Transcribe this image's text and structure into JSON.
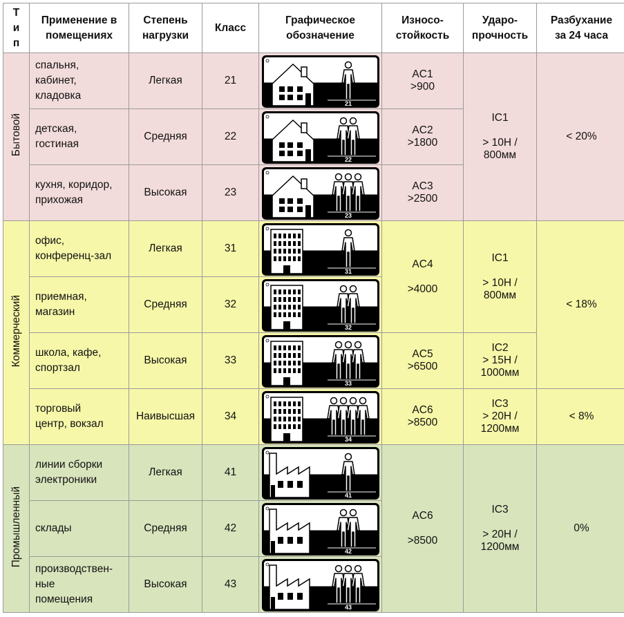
{
  "header": {
    "type": "Т\nи\nп",
    "application": "Применение в\nпомещениях",
    "load": "Степень\nнагрузки",
    "class": "Класс",
    "graphic": "Графическое\nобозначение",
    "abrasion": "Износо-\nстойкость",
    "impact": "Ударо-\nпрочность",
    "swelling": "Разбухание\nза 24 часа"
  },
  "groups": [
    {
      "type": "Бытовой",
      "color": "#f2dcdb",
      "icon": "house-icon",
      "rows": [
        {
          "application": "спальня,\nкабинет,\nкладовка",
          "load": "Легкая",
          "class": "21",
          "people": 1
        },
        {
          "application": "детская,\nгостиная",
          "load": "Средняя",
          "class": "22",
          "people": 2
        },
        {
          "application": "кухня, коридор,\nприхожая",
          "load": "Высокая",
          "class": "23",
          "people": 3
        }
      ],
      "abrasion": [
        "AC1\n>900",
        "AC2\n>1800",
        "AC3\n>2500"
      ],
      "impact": [
        "IC1\n\n> 10Н /\n800мм"
      ],
      "swelling": [
        "< 20%"
      ]
    },
    {
      "type": "Коммерческий",
      "color": "#f7f7a9",
      "icon": "office-building-icon",
      "rows": [
        {
          "application": "офис,\nконференц-зал",
          "load": "Легкая",
          "class": "31",
          "people": 1
        },
        {
          "application": "приемная,\nмагазин",
          "load": "Средняя",
          "class": "32",
          "people": 2
        },
        {
          "application": "школа, кафе,\nспортзал",
          "load": "Высокая",
          "class": "33",
          "people": 3
        },
        {
          "application": "торговый\nцентр, вокзал",
          "load": "Наивысшая",
          "class": "34",
          "people": 4
        }
      ],
      "abrasion": [
        "AC4\n\n>4000",
        "AC5\n>6500",
        "AC6\n>8500"
      ],
      "impact": [
        "IC1\n\n> 10Н /\n800мм",
        "IC2\n> 15Н /\n1000мм",
        "IC3\n> 20Н /\n1200мм"
      ],
      "swelling": [
        "< 18%",
        "< 8%"
      ]
    },
    {
      "type": "Промышленный",
      "color": "#d8e4bc",
      "icon": "factory-icon",
      "rows": [
        {
          "application": "линии сборки\nэлектроники",
          "load": "Легкая",
          "class": "41",
          "people": 1
        },
        {
          "application": "склады",
          "load": "Средняя",
          "class": "42",
          "people": 2
        },
        {
          "application": "производствен-\nные\nпомещения",
          "load": "Высокая",
          "class": "43",
          "people": 3
        }
      ],
      "abrasion": [
        "AC6\n\n>8500"
      ],
      "impact": [
        "IC3\n\n> 20Н /\n1200мм"
      ],
      "swelling": [
        "0%"
      ]
    }
  ]
}
